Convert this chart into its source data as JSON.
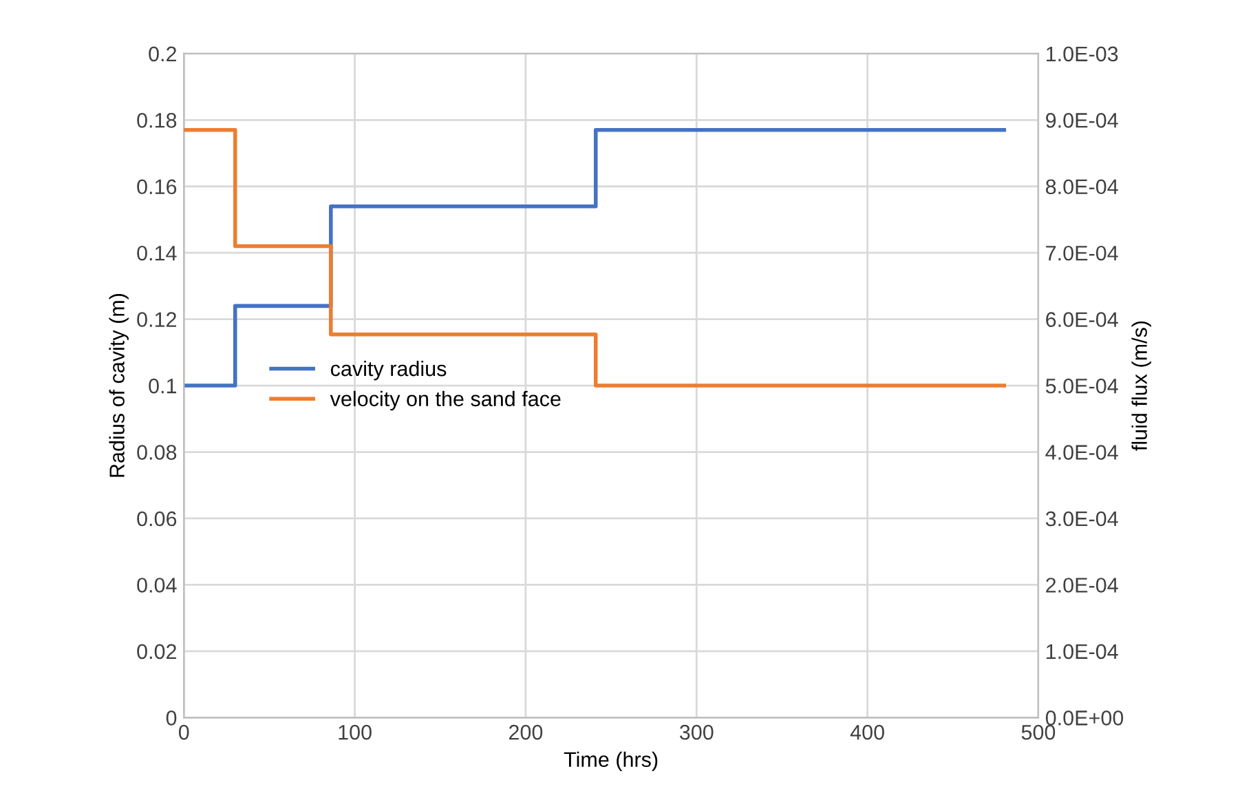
{
  "chart_data": {
    "type": "step",
    "xlabel": "Time (hrs)",
    "ylabel": "Radius of cavity (m)",
    "y2label": "fluid flux (m/s)",
    "x": [
      0,
      30,
      86,
      241,
      480
    ],
    "series": [
      {
        "name": "cavity radius",
        "color": "#4472c4",
        "values": [
          0.1,
          0.124,
          0.154,
          0.177,
          0.177
        ]
      },
      {
        "name": "velocity on the sand face",
        "color": "#ed7d31",
        "axis": "y2",
        "values": [
          0.000885,
          0.00071,
          0.000577,
          0.0005,
          0.0005
        ]
      }
    ],
    "xlim": [
      0,
      500
    ],
    "xticks": [
      0,
      100,
      200,
      300,
      400,
      500
    ],
    "ylim": [
      0,
      0.2
    ],
    "yticks": [
      0,
      0.02,
      0.04,
      0.06,
      0.08,
      0.1,
      0.12,
      0.14,
      0.16,
      0.18,
      0.2
    ],
    "y2lim": [
      0,
      0.001
    ],
    "y2ticks": [
      {
        "value": 0,
        "label": "0.0E+00"
      },
      {
        "value": 0.0001,
        "label": "1.0E-04"
      },
      {
        "value": 0.0002,
        "label": "2.0E-04"
      },
      {
        "value": 0.0003,
        "label": "3.0E-04"
      },
      {
        "value": 0.0004,
        "label": "4.0E-04"
      },
      {
        "value": 0.0005,
        "label": "5.0E-04"
      },
      {
        "value": 0.0006,
        "label": "6.0E-04"
      },
      {
        "value": 0.0007,
        "label": "7.0E-04"
      },
      {
        "value": 0.0008,
        "label": "8.0E-04"
      },
      {
        "value": 0.0009,
        "label": "9.0E-04"
      },
      {
        "value": 0.001,
        "label": "1.0E-03"
      }
    ],
    "grid": true,
    "legend": "center left",
    "line_style": "solid",
    "marker": "none"
  }
}
